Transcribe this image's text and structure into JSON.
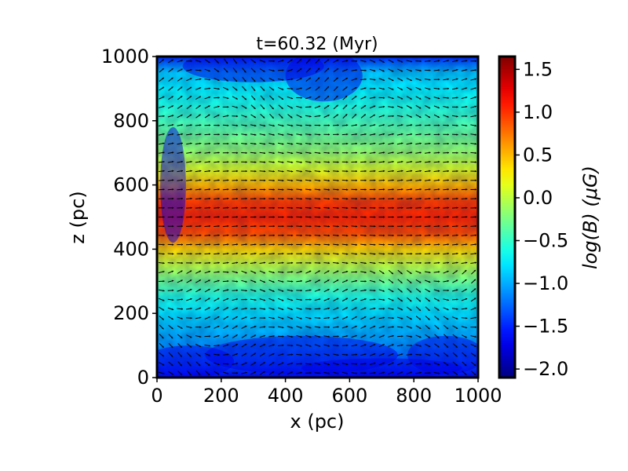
{
  "chart_data": {
    "type": "heatmap",
    "title": "t=60.32 (Myr)",
    "xlabel": "x (pc)",
    "ylabel": "z (pc)",
    "xlim": [
      0,
      1000
    ],
    "ylim": [
      0,
      1000
    ],
    "x_ticks": [
      "0",
      "200",
      "400",
      "600",
      "800",
      "1000"
    ],
    "y_ticks": [
      "0",
      "200",
      "400",
      "600",
      "800",
      "1000"
    ],
    "colorbar": {
      "label": "log(B) (μG)",
      "range": [
        -2.1,
        1.65
      ],
      "ticks": [
        "−2.0",
        "−1.5",
        "−1.0",
        "−0.5",
        "0.0",
        "0.5",
        "1.0",
        "1.5"
      ],
      "tick_values": [
        -2.0,
        -1.5,
        -1.0,
        -0.5,
        0.0,
        0.5,
        1.0,
        1.5
      ],
      "colormap": "jet"
    },
    "field_profile": {
      "z": [
        0,
        50,
        100,
        150,
        200,
        250,
        300,
        350,
        400,
        450,
        500,
        550,
        600,
        650,
        700,
        750,
        800,
        850,
        900,
        950,
        1000
      ],
      "logB": [
        -1.6,
        -1.3,
        -1.1,
        -0.95,
        -0.8,
        -0.6,
        -0.3,
        0.0,
        0.4,
        0.9,
        1.05,
        0.95,
        0.5,
        0.1,
        -0.15,
        -0.3,
        -0.45,
        -0.6,
        -0.75,
        -0.9,
        -1.5
      ]
    },
    "overlay": "magnetic field direction vectors (black arrows)"
  }
}
